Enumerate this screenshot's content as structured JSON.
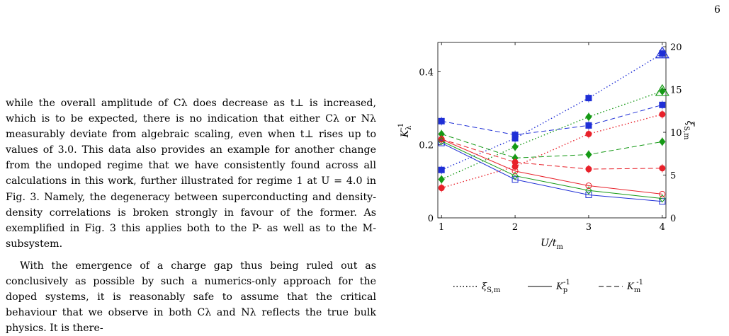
{
  "page": {
    "number": "6"
  },
  "body_text": {
    "paragraphs": [
      "while the overall amplitude of Cλ does decrease as t⊥ is increased, which is to be expected, there is no indication that either Cλ or Nλ measurably deviate from algebraic scaling, even when t⊥ rises up to values of 3.0. This data also provides an example for another change from the undoped regime that we have consistently found across all calculations in this work, further illustrated for regime 1 at U = 4.0 in Fig. 3. Namely, the degeneracy between superconducting and density-density correlations is broken strongly in favour of the former. As exemplified in Fig. 3 this applies both to the P- as well as to the M-subsystem.",
      "With the emergence of a charge gap thus being ruled out as conclusively as possible by such a numerics-only approach for the doped systems, it is reasonably safe to assume that the critical behaviour that we observe in both Cλ and Nλ reflects the true bulk physics. It is there-"
    ]
  },
  "colors": {
    "blue": "#1f2fd6",
    "red": "#e8212a",
    "green": "#159915",
    "axis": "#000000"
  },
  "chart_data": {
    "type": "line",
    "xlabel": "U/t_m",
    "ylabel_left": "K_λ^{-1}",
    "ylabel_right": "ξ_{S,m}",
    "xlim": [
      0.95,
      4.05
    ],
    "ylim_left": [
      0,
      0.48
    ],
    "ylim_right": [
      0,
      20.5
    ],
    "xticks": [
      1,
      2,
      3,
      4
    ],
    "yticks_left": [
      0,
      0.2,
      0.4
    ],
    "yticks_right": [
      0,
      5,
      10,
      15,
      20
    ],
    "x": [
      1,
      2,
      3,
      4
    ],
    "series": [
      {
        "name": "ξ_{S,m}",
        "axis": "right",
        "style": "dotted",
        "color": "blue",
        "values": [
          5.6,
          9.3,
          14.0,
          19.2
        ],
        "marker": "square-filled",
        "end_marker": "triangle-open"
      },
      {
        "name": "",
        "axis": "right",
        "style": "dotted",
        "color": "green",
        "values": [
          4.5,
          8.3,
          11.8,
          14.8
        ],
        "marker": "diamond-filled",
        "end_marker": "triangle-open"
      },
      {
        "name": "",
        "axis": "right",
        "style": "dotted",
        "color": "red",
        "values": [
          3.5,
          6.0,
          9.8,
          12.1
        ],
        "marker": "circle-filled"
      },
      {
        "name": "",
        "axis": "right",
        "style": "dashed",
        "color": "blue",
        "values": [
          11.3,
          9.7,
          10.8,
          13.2
        ],
        "marker": "square-filled"
      },
      {
        "name": "",
        "axis": "right",
        "style": "dashed",
        "color": "green",
        "values": [
          9.8,
          7.0,
          7.4,
          8.9
        ],
        "marker": "diamond-filled"
      },
      {
        "name": "",
        "axis": "right",
        "style": "dashed",
        "color": "red",
        "values": [
          9.2,
          6.5,
          5.7,
          5.8
        ],
        "marker": "circle-filled"
      },
      {
        "name": "K_p^{-1}",
        "axis": "left",
        "style": "solid",
        "color": "blue",
        "values": [
          0.205,
          0.105,
          0.063,
          0.045
        ],
        "marker": "square-open"
      },
      {
        "name": "",
        "axis": "left",
        "style": "solid",
        "color": "green",
        "values": [
          0.21,
          0.115,
          0.075,
          0.053
        ],
        "marker": "diamond-open"
      },
      {
        "name": "",
        "axis": "left",
        "style": "solid",
        "color": "red",
        "values": [
          0.215,
          0.128,
          0.088,
          0.065
        ],
        "marker": "circle-open"
      }
    ],
    "legend": {
      "placement": "below",
      "entries": [
        {
          "label": "ξ_{S,m}",
          "style": "dotted"
        },
        {
          "label": "K_p^{-1}",
          "style": "solid"
        },
        {
          "label": "K_m^{-1}",
          "style": "dashed"
        }
      ]
    }
  }
}
